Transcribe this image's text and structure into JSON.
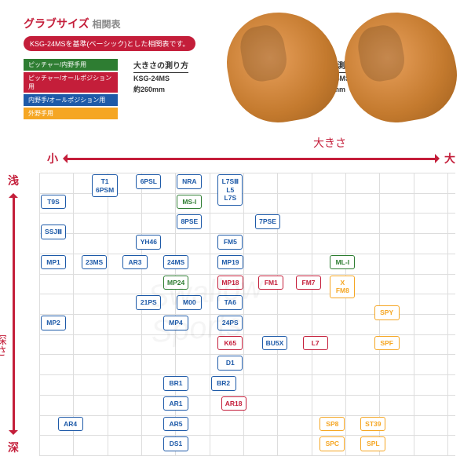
{
  "header": {
    "title_main": "グラブサイズ",
    "title_sub": "相関表",
    "description": "KSG-24MSを基準(ベーシック)とした相関表です。"
  },
  "legend": {
    "items": [
      {
        "label": "ピッチャー/内野手用",
        "bg": "#2e7d32"
      },
      {
        "label": "ピッチャー/オールポジション用",
        "bg": "#c41e3a"
      },
      {
        "label": "内野手/オールポジション用",
        "bg": "#1e5aa8"
      },
      {
        "label": "外野手用",
        "bg": "#f5a623"
      }
    ]
  },
  "measurements": [
    {
      "title": "大きさの測り方",
      "model": "KSG-24MS",
      "value": "約260mm"
    },
    {
      "title": "深さの測り方",
      "model": "KSG-24MS",
      "value": "約160mm"
    }
  ],
  "axes": {
    "x": {
      "min_label": "小",
      "max_label": "大",
      "title": "大きさ"
    },
    "y": {
      "min_label": "浅",
      "max_label": "深",
      "title": "深さ"
    }
  },
  "grid": {
    "rows": 14,
    "cols": 12,
    "color": "#dddddd"
  },
  "colors": {
    "blue": "#1e5aa8",
    "green": "#2e7d32",
    "red": "#c41e3a",
    "orange": "#f5a623",
    "brand": "#c41e3a"
  },
  "cells": [
    {
      "labels": [
        "T1",
        "6PSM"
      ],
      "color": "blue",
      "row": 0,
      "col": 1.5,
      "h": 2
    },
    {
      "labels": [
        "6PSL"
      ],
      "color": "blue",
      "row": 0,
      "col": 2.8
    },
    {
      "labels": [
        "NRA"
      ],
      "color": "blue",
      "row": 0,
      "col": 4
    },
    {
      "labels": [
        "T9S"
      ],
      "color": "blue",
      "row": 1,
      "col": 0
    },
    {
      "labels": [
        "MS-I"
      ],
      "color": "green",
      "row": 1,
      "col": 4
    },
    {
      "labels": [
        "L7SⅢ",
        "L5",
        "L7S"
      ],
      "color": "blue",
      "row": 0,
      "col": 5.2,
      "h": 3
    },
    {
      "labels": [
        "8PSE"
      ],
      "color": "blue",
      "row": 2,
      "col": 4
    },
    {
      "labels": [
        "7PSE"
      ],
      "color": "blue",
      "row": 2,
      "col": 6.3
    },
    {
      "labels": [
        "SSJⅢ"
      ],
      "color": "blue",
      "row": 2.5,
      "col": 0
    },
    {
      "labels": [
        "YH46"
      ],
      "color": "blue",
      "row": 3,
      "col": 2.8
    },
    {
      "labels": [
        "FM5"
      ],
      "color": "blue",
      "row": 3,
      "col": 5.2
    },
    {
      "labels": [
        "MP1"
      ],
      "color": "blue",
      "row": 4,
      "col": 0
    },
    {
      "labels": [
        "23MS"
      ],
      "color": "blue",
      "row": 4,
      "col": 1.2
    },
    {
      "labels": [
        "AR3"
      ],
      "color": "blue",
      "row": 4,
      "col": 2.4
    },
    {
      "labels": [
        "24MS"
      ],
      "color": "blue",
      "row": 4,
      "col": 3.6
    },
    {
      "labels": [
        "MP24"
      ],
      "color": "green",
      "row": 5,
      "col": 3.6
    },
    {
      "labels": [
        "MP19"
      ],
      "color": "blue",
      "row": 4,
      "col": 5.2
    },
    {
      "labels": [
        "MP18"
      ],
      "color": "red",
      "row": 5,
      "col": 5.2
    },
    {
      "labels": [
        "TA6"
      ],
      "color": "blue",
      "row": 6,
      "col": 5.2
    },
    {
      "labels": [
        "FM1"
      ],
      "color": "red",
      "row": 5,
      "col": 6.4
    },
    {
      "labels": [
        "FM7"
      ],
      "color": "red",
      "row": 5,
      "col": 7.5
    },
    {
      "labels": [
        "ML-I"
      ],
      "color": "green",
      "row": 4,
      "col": 8.5
    },
    {
      "labels": [
        "X",
        "FM8"
      ],
      "color": "orange",
      "row": 5,
      "col": 8.5,
      "h": 2
    },
    {
      "labels": [
        "21PS"
      ],
      "color": "blue",
      "row": 6,
      "col": 2.8
    },
    {
      "labels": [
        "M00"
      ],
      "color": "blue",
      "row": 6,
      "col": 4
    },
    {
      "labels": [
        "SPY"
      ],
      "color": "orange",
      "row": 6.5,
      "col": 9.8
    },
    {
      "labels": [
        "MP2"
      ],
      "color": "blue",
      "row": 7,
      "col": 0
    },
    {
      "labels": [
        "MP4"
      ],
      "color": "blue",
      "row": 7,
      "col": 3.6
    },
    {
      "labels": [
        "24PS"
      ],
      "color": "blue",
      "row": 7,
      "col": 5.2
    },
    {
      "labels": [
        "K65"
      ],
      "color": "red",
      "row": 8,
      "col": 5.2
    },
    {
      "labels": [
        "D1"
      ],
      "color": "blue",
      "row": 9,
      "col": 5.2
    },
    {
      "labels": [
        "BU5X"
      ],
      "color": "blue",
      "row": 8,
      "col": 6.5
    },
    {
      "labels": [
        "L7"
      ],
      "color": "red",
      "row": 8,
      "col": 7.7
    },
    {
      "labels": [
        "SPF"
      ],
      "color": "orange",
      "row": 8,
      "col": 9.8
    },
    {
      "labels": [
        "BR1"
      ],
      "color": "blue",
      "row": 10,
      "col": 3.6
    },
    {
      "labels": [
        "BR2"
      ],
      "color": "blue",
      "row": 10,
      "col": 5
    },
    {
      "labels": [
        "AR1"
      ],
      "color": "blue",
      "row": 11,
      "col": 3.6
    },
    {
      "labels": [
        "AR5"
      ],
      "color": "blue",
      "row": 12,
      "col": 3.6
    },
    {
      "labels": [
        "AR18"
      ],
      "color": "red",
      "row": 11,
      "col": 5.3
    },
    {
      "labels": [
        "AR4"
      ],
      "color": "blue",
      "row": 12,
      "col": 0.5
    },
    {
      "labels": [
        "DS1"
      ],
      "color": "blue",
      "row": 13,
      "col": 3.6
    },
    {
      "labels": [
        "SP8"
      ],
      "color": "orange",
      "row": 12,
      "col": 8.2
    },
    {
      "labels": [
        "ST39"
      ],
      "color": "orange",
      "row": 12,
      "col": 9.4
    },
    {
      "labels": [
        "SPC"
      ],
      "color": "orange",
      "row": 13,
      "col": 8.2
    },
    {
      "labels": [
        "SPL"
      ],
      "color": "orange",
      "row": 13,
      "col": 9.4
    }
  ],
  "watermark": "Swallow Sports"
}
